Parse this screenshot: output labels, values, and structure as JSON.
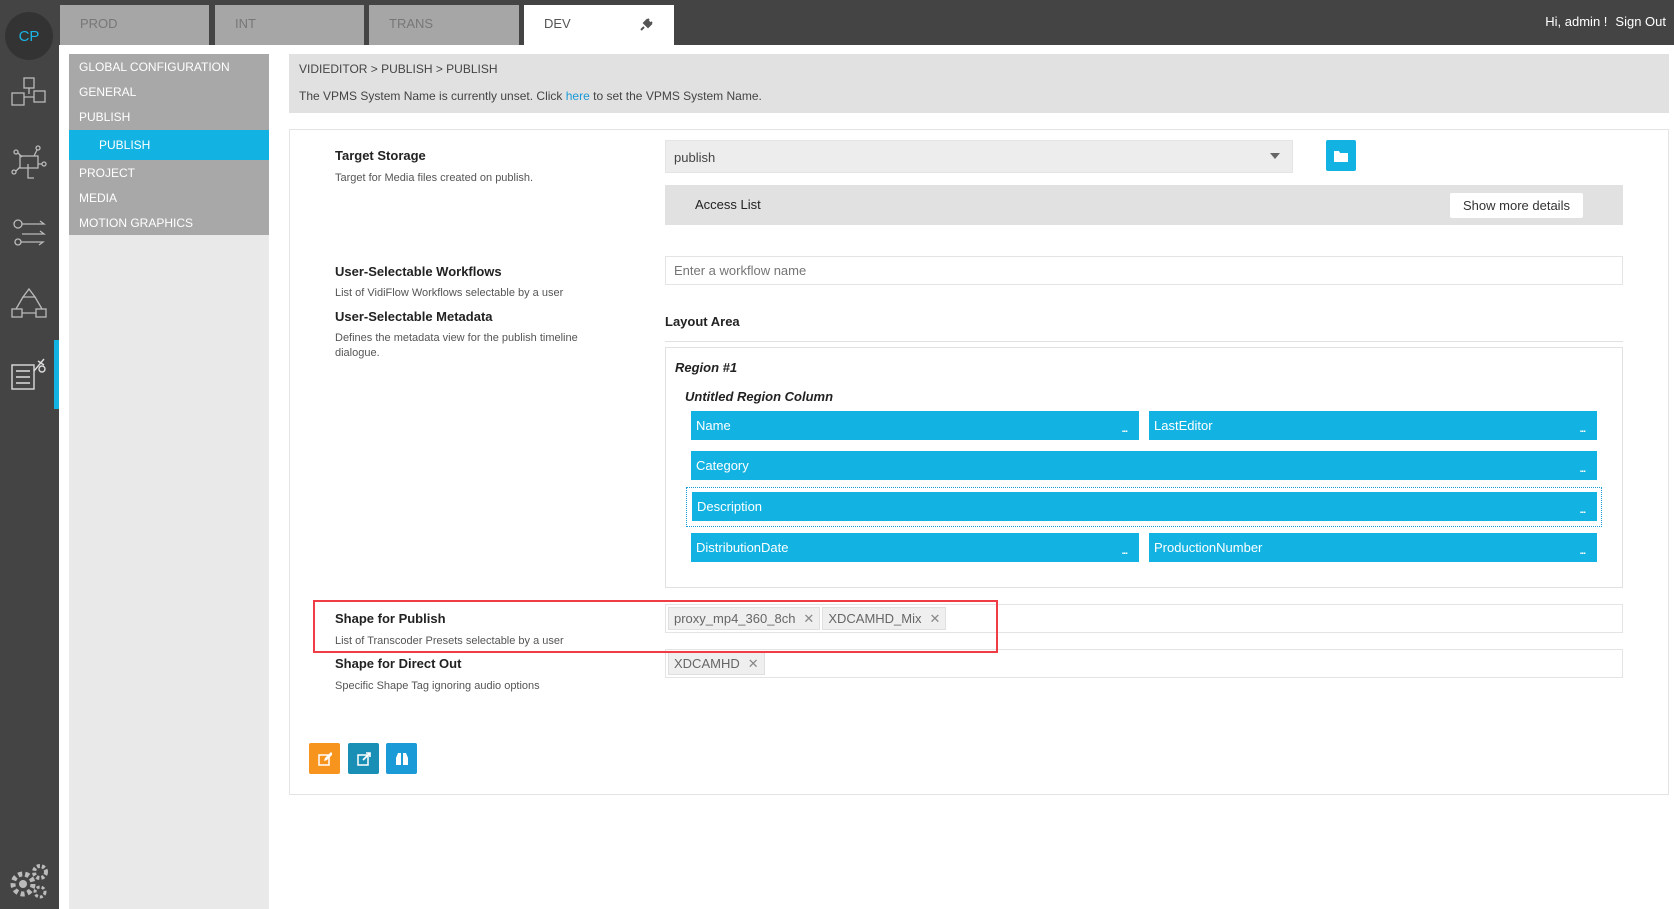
{
  "logo": "CP",
  "tabs": [
    {
      "label": "PROD"
    },
    {
      "label": "INT"
    },
    {
      "label": "TRANS"
    },
    {
      "label": "DEV",
      "active": true,
      "icon": "plug-icon"
    }
  ],
  "user": {
    "greeting": "Hi, admin !",
    "signout": "Sign Out"
  },
  "leftbar_icons": [
    "cubes-icon",
    "network-touch-icon",
    "workflow-icon",
    "diagram-icon",
    "publish-editor-icon",
    "gears-icon"
  ],
  "nav": {
    "items": [
      {
        "label": "GLOBAL CONFIGURATION"
      },
      {
        "label": "GENERAL"
      },
      {
        "label": "PUBLISH"
      },
      {
        "label": "PUBLISH",
        "active": true
      },
      {
        "label": "PROJECT"
      },
      {
        "label": "MEDIA"
      },
      {
        "label": "MOTION GRAPHICS"
      }
    ]
  },
  "breadcrumb": "VIDIEDITOR > PUBLISH > PUBLISH",
  "notice": {
    "before": "The VPMS System Name is currently unset. Click ",
    "link": "here",
    "after": " to set the VPMS System Name."
  },
  "form": {
    "target_storage": {
      "label": "Target Storage",
      "desc": "Target for Media files created on publish.",
      "value": "publish",
      "access_list": "Access List",
      "show_more": "Show more details"
    },
    "workflows": {
      "label": "User-Selectable Workflows",
      "desc": "List of VidiFlow Workflows selectable by a user",
      "placeholder": "Enter a workflow name"
    },
    "metadata": {
      "label": "User-Selectable Metadata",
      "desc": "Defines the metadata view for the publish timeline dialogue.",
      "layout_area": "Layout Area",
      "region": "Region #1",
      "column": "Untitled Region Column",
      "fields": [
        "Name",
        "LastEditor",
        "Category",
        "Description",
        "DistributionDate",
        "ProductionNumber"
      ],
      "more": "..."
    },
    "shape_publish": {
      "label": "Shape for Publish",
      "desc": "List of Transcoder Presets selectable by a user",
      "tags": [
        "proxy_mp4_360_8ch",
        "XDCAMHD_Mix"
      ]
    },
    "shape_direct": {
      "label": "Shape for Direct Out",
      "desc": "Specific Shape Tag ignoring audio options",
      "tags": [
        "XDCAMHD"
      ]
    },
    "remove_glyph": "✕"
  },
  "colors": {
    "accent": "#12b3e2",
    "edit": "#f7941d",
    "teal": "#1a8fb5",
    "highlight": "#f03c44"
  }
}
